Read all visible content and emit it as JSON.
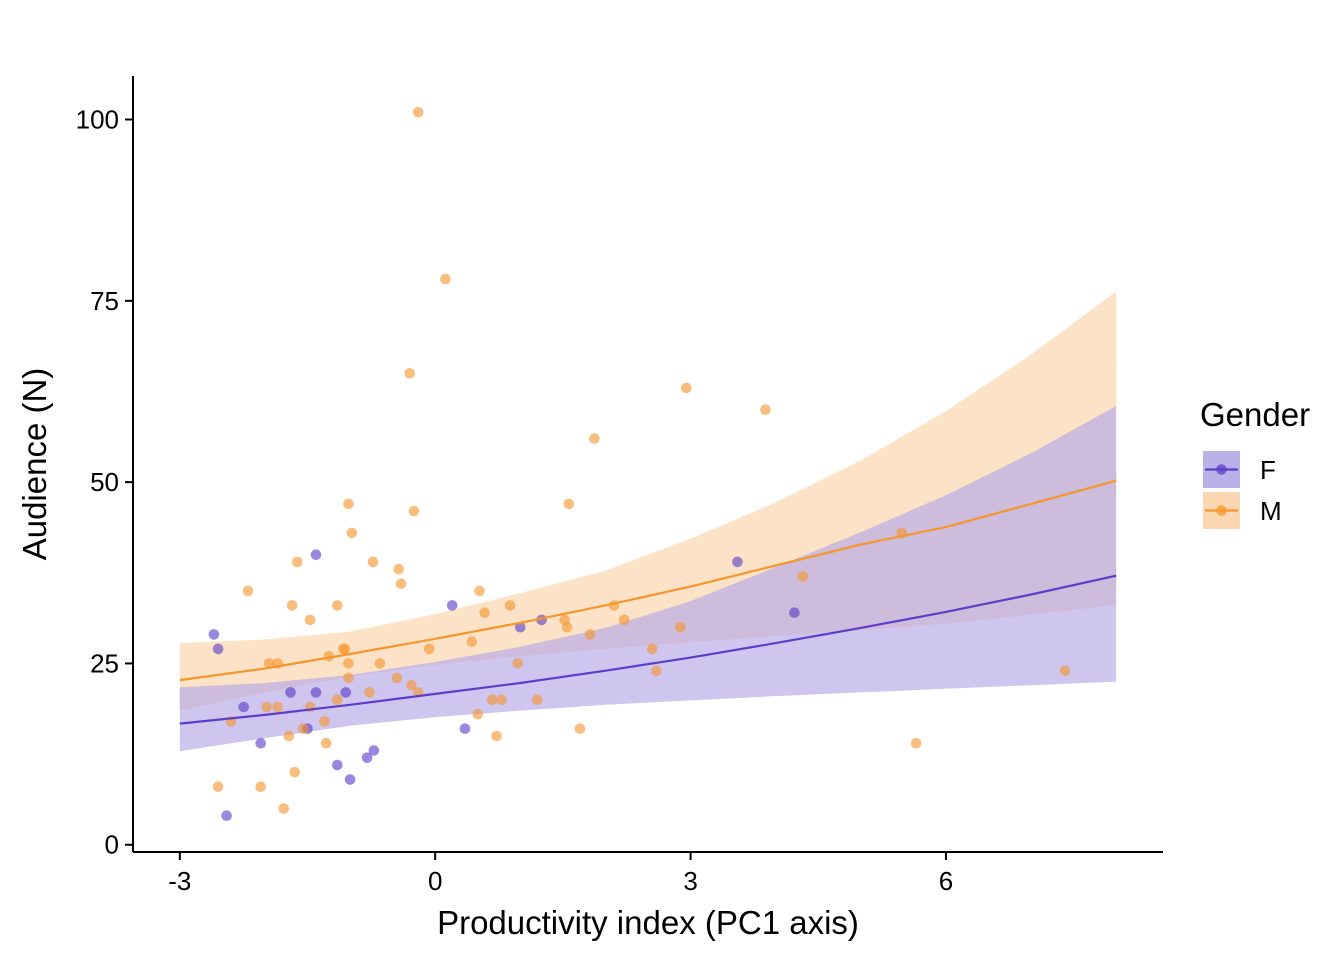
{
  "chart_data": {
    "type": "scatter",
    "title": "",
    "xlabel": "Productivity index (PC1 axis)",
    "ylabel": "Audience (N)",
    "xlim": [
      -3.55,
      8.55
    ],
    "ylim": [
      -1,
      106
    ],
    "x_ticks": [
      -3,
      0,
      3,
      6
    ],
    "y_ticks": [
      0,
      25,
      50,
      75,
      100
    ],
    "grid": false,
    "legend": {
      "title": "Gender",
      "position": "right"
    },
    "series": [
      {
        "name": "F",
        "color": "#5b3fc8",
        "ribbon_color": "#b3a8e6",
        "points": [
          [
            -2.6,
            29
          ],
          [
            -2.55,
            27
          ],
          [
            -2.45,
            4
          ],
          [
            -2.25,
            19
          ],
          [
            -2.05,
            14
          ],
          [
            -1.7,
            21
          ],
          [
            -1.5,
            16
          ],
          [
            -1.4,
            40
          ],
          [
            -1.4,
            21
          ],
          [
            -1.15,
            11
          ],
          [
            -1.05,
            21
          ],
          [
            -1.0,
            9
          ],
          [
            -0.8,
            12
          ],
          [
            -0.72,
            13
          ],
          [
            0.2,
            33
          ],
          [
            0.35,
            16
          ],
          [
            1.0,
            30
          ],
          [
            1.25,
            31
          ],
          [
            3.55,
            39
          ],
          [
            4.22,
            32
          ]
        ],
        "fit": {
          "x": [
            -3,
            -2,
            -1,
            0,
            1,
            2,
            3,
            4,
            5,
            6,
            7,
            8
          ],
          "y": [
            16.7,
            17.9,
            19.3,
            20.8,
            22.3,
            24.0,
            25.8,
            27.8,
            29.9,
            32.1,
            34.5,
            37.1
          ],
          "lower": [
            12.9,
            14.7,
            16.4,
            17.6,
            18.5,
            19.3,
            19.9,
            20.5,
            21.0,
            21.5,
            22.0,
            22.5
          ],
          "upper": [
            21.7,
            22.3,
            23.4,
            25.2,
            27.3,
            29.9,
            33.6,
            38.3,
            43.1,
            48.2,
            54.0,
            60.5
          ]
        }
      },
      {
        "name": "M",
        "color": "#f5962e",
        "ribbon_color": "#fbd3a8",
        "points": [
          [
            -2.55,
            8
          ],
          [
            -2.4,
            17
          ],
          [
            -2.2,
            35
          ],
          [
            -2.05,
            8
          ],
          [
            -1.95,
            25
          ],
          [
            -1.98,
            19
          ],
          [
            -1.85,
            19
          ],
          [
            -1.85,
            25
          ],
          [
            -1.78,
            5
          ],
          [
            -1.72,
            15
          ],
          [
            -1.68,
            33
          ],
          [
            -1.65,
            10
          ],
          [
            -1.62,
            39
          ],
          [
            -1.55,
            16
          ],
          [
            -1.47,
            19
          ],
          [
            -1.47,
            31
          ],
          [
            -1.3,
            17
          ],
          [
            -1.28,
            14
          ],
          [
            -1.25,
            26
          ],
          [
            -1.15,
            33
          ],
          [
            -1.15,
            20
          ],
          [
            -1.08,
            27
          ],
          [
            -1.06,
            27
          ],
          [
            -1.02,
            47
          ],
          [
            -1.02,
            25
          ],
          [
            -1.02,
            23
          ],
          [
            -0.98,
            43
          ],
          [
            -0.77,
            21
          ],
          [
            -0.73,
            39
          ],
          [
            -0.65,
            25
          ],
          [
            -0.45,
            23
          ],
          [
            -0.43,
            38
          ],
          [
            -0.4,
            36
          ],
          [
            -0.3,
            65
          ],
          [
            -0.28,
            22
          ],
          [
            -0.25,
            46
          ],
          [
            -0.2,
            101
          ],
          [
            -0.2,
            21
          ],
          [
            -0.07,
            27
          ],
          [
            0.12,
            78
          ],
          [
            0.43,
            28
          ],
          [
            0.5,
            18
          ],
          [
            0.52,
            35
          ],
          [
            0.58,
            32
          ],
          [
            0.67,
            20
          ],
          [
            0.72,
            15
          ],
          [
            0.78,
            20
          ],
          [
            0.88,
            33
          ],
          [
            0.97,
            25
          ],
          [
            1.2,
            20
          ],
          [
            1.52,
            31
          ],
          [
            1.55,
            30
          ],
          [
            1.57,
            47
          ],
          [
            1.7,
            16
          ],
          [
            1.82,
            29
          ],
          [
            1.87,
            56
          ],
          [
            2.1,
            33
          ],
          [
            2.22,
            31
          ],
          [
            2.55,
            27
          ],
          [
            2.6,
            24
          ],
          [
            2.88,
            30
          ],
          [
            2.95,
            63
          ],
          [
            3.88,
            60
          ],
          [
            4.32,
            37
          ],
          [
            5.48,
            43
          ],
          [
            5.65,
            14
          ],
          [
            7.4,
            24
          ]
        ],
        "fit": {
          "x": [
            -3,
            -2,
            -1,
            0,
            1,
            2,
            3,
            4,
            5,
            6,
            7,
            8
          ],
          "y": [
            22.7,
            24.3,
            26.3,
            28.4,
            30.6,
            33.0,
            35.6,
            38.5,
            41.4,
            43.8,
            47.0,
            50.2
          ],
          "lower": [
            18.5,
            21.0,
            23.2,
            24.8,
            26.0,
            27.0,
            27.9,
            28.8,
            29.6,
            30.5,
            31.7,
            33.1
          ],
          "upper": [
            27.8,
            28.3,
            29.4,
            31.8,
            34.7,
            37.8,
            42.2,
            47.2,
            53.0,
            59.8,
            67.6,
            76.3
          ]
        }
      }
    ]
  }
}
